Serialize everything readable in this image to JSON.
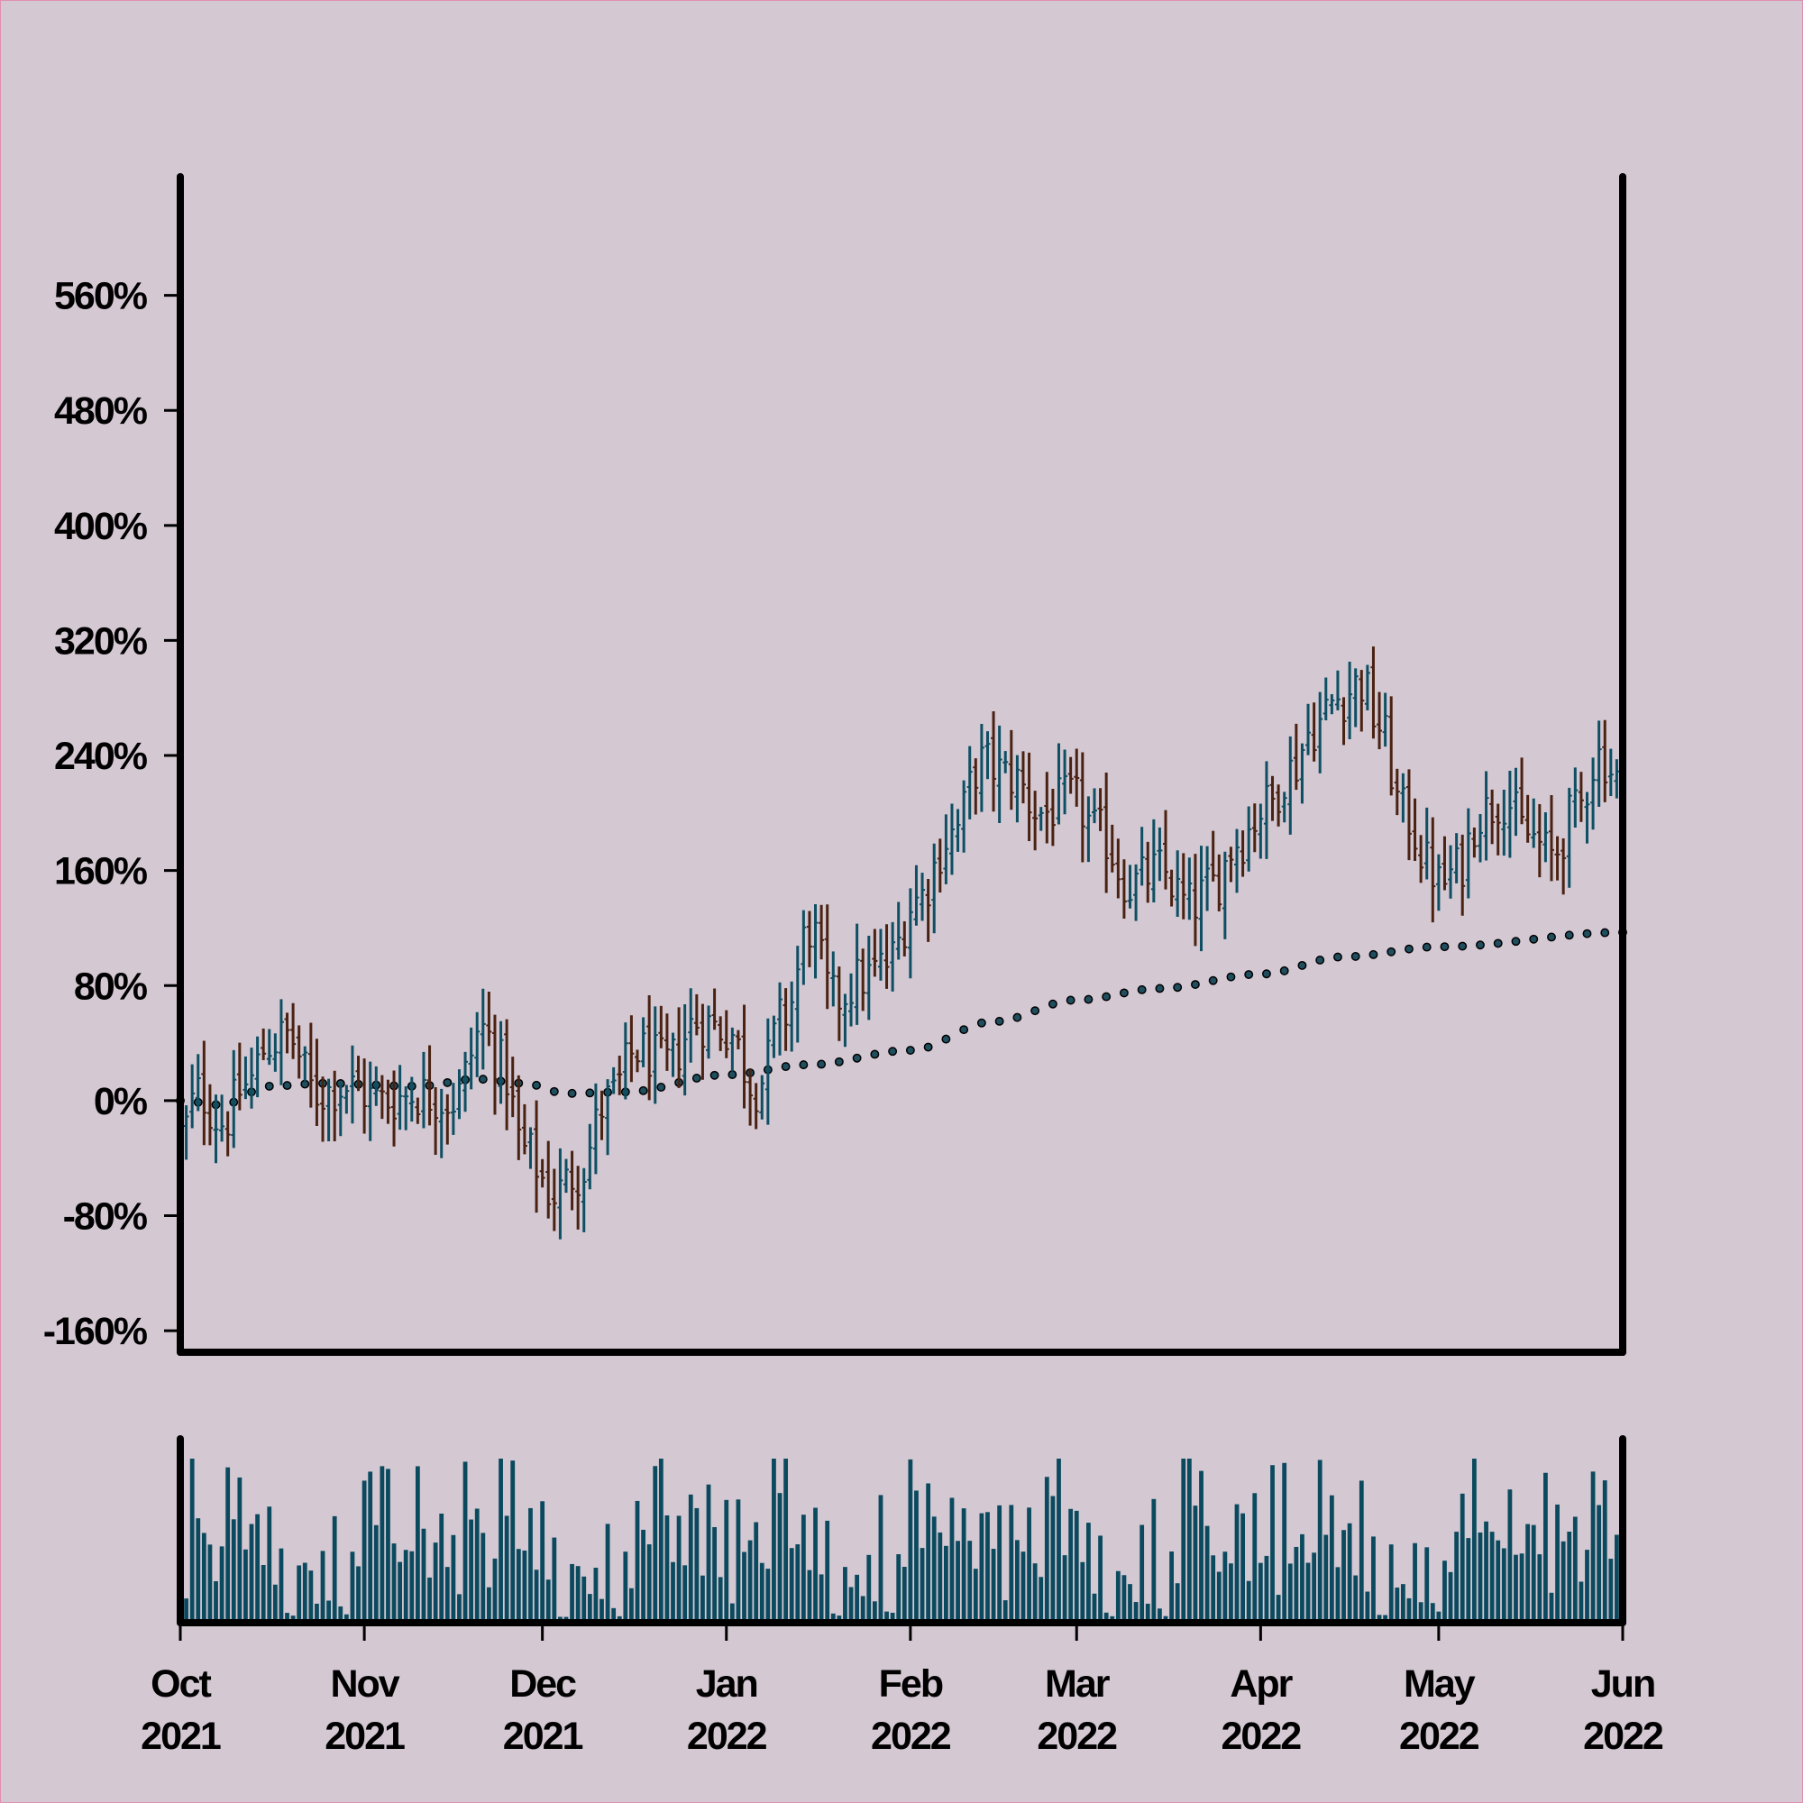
{
  "chart_data": {
    "type": "ohlc",
    "colors": {
      "background": "#d4c8d2",
      "up": "#0e4f63",
      "down": "#4a2212",
      "volume": "#0b4a5e",
      "avg_line": "#1f4e5f",
      "axis": "#000000",
      "frame_border": "#e08fb0"
    },
    "price_panel": {
      "ylim": [
        -175,
        640
      ],
      "yticks": [
        -160,
        -80,
        0,
        80,
        160,
        240,
        320,
        400,
        480,
        560
      ],
      "ytick_labels": [
        "-160%",
        "-80%",
        "0%",
        "80%",
        "160%",
        "240%",
        "320%",
        "400%",
        "480%",
        "560%"
      ]
    },
    "x_axis": {
      "start": "2021-10-01",
      "end": "2022-06-01",
      "ticks": [
        "2021-10-01",
        "2021-11-01",
        "2021-12-01",
        "2022-01-01",
        "2022-02-01",
        "2022-03-01",
        "2022-04-01",
        "2022-05-01",
        "2022-06-01"
      ],
      "tick_labels": [
        [
          "Oct",
          "2021"
        ],
        [
          "Nov",
          "2021"
        ],
        [
          "Dec",
          "2021"
        ],
        [
          "Jan",
          "2022"
        ],
        [
          "Feb",
          "2022"
        ],
        [
          "Mar",
          "2022"
        ],
        [
          "Apr",
          "2022"
        ],
        [
          "May",
          "2022"
        ],
        [
          "Jun",
          "2022"
        ]
      ]
    },
    "close_anchors": [
      [
        "2021-10-01",
        -25
      ],
      [
        "2021-10-04",
        5
      ],
      [
        "2021-10-08",
        -15
      ],
      [
        "2021-10-12",
        10
      ],
      [
        "2021-10-16",
        40
      ],
      [
        "2021-10-19",
        45
      ],
      [
        "2021-10-24",
        5
      ],
      [
        "2021-10-29",
        10
      ],
      [
        "2021-11-04",
        0
      ],
      [
        "2021-11-10",
        5
      ],
      [
        "2021-11-16",
        0
      ],
      [
        "2021-11-21",
        50
      ],
      [
        "2021-11-24",
        25
      ],
      [
        "2021-11-28",
        -35
      ],
      [
        "2021-12-03",
        -65
      ],
      [
        "2021-12-07",
        -50
      ],
      [
        "2021-12-12",
        0
      ],
      [
        "2021-12-17",
        35
      ],
      [
        "2021-12-22",
        25
      ],
      [
        "2021-12-27",
        55
      ],
      [
        "2022-01-01",
        50
      ],
      [
        "2022-01-06",
        10
      ],
      [
        "2022-01-11",
        60
      ],
      [
        "2022-01-15",
        120
      ],
      [
        "2022-01-19",
        70
      ],
      [
        "2022-01-24",
        85
      ],
      [
        "2022-01-28",
        95
      ],
      [
        "2022-02-02",
        140
      ],
      [
        "2022-02-08",
        185
      ],
      [
        "2022-02-13",
        235
      ],
      [
        "2022-02-18",
        225
      ],
      [
        "2022-02-23",
        200
      ],
      [
        "2022-02-28",
        210
      ],
      [
        "2022-03-05",
        185
      ],
      [
        "2022-03-10",
        150
      ],
      [
        "2022-03-15",
        160
      ],
      [
        "2022-03-20",
        135
      ],
      [
        "2022-03-24",
        150
      ],
      [
        "2022-03-28",
        180
      ],
      [
        "2022-04-02",
        205
      ],
      [
        "2022-04-06",
        230
      ],
      [
        "2022-04-10",
        260
      ],
      [
        "2022-04-14",
        280
      ],
      [
        "2022-04-18",
        290
      ],
      [
        "2022-04-21",
        260
      ],
      [
        "2022-04-25",
        200
      ],
      [
        "2022-04-30",
        160
      ],
      [
        "2022-05-01",
        150
      ],
      [
        "2022-05-04",
        160
      ],
      [
        "2022-05-08",
        200
      ],
      [
        "2022-05-12",
        210
      ],
      [
        "2022-05-16",
        185
      ],
      [
        "2022-05-20",
        170
      ],
      [
        "2022-05-24",
        200
      ],
      [
        "2022-05-28",
        240
      ],
      [
        "2022-06-01",
        220
      ]
    ],
    "average_anchors": [
      [
        "2021-10-01",
        0
      ],
      [
        "2021-10-08",
        -3
      ],
      [
        "2021-10-16",
        10
      ],
      [
        "2021-10-25",
        12
      ],
      [
        "2021-11-10",
        10
      ],
      [
        "2021-11-20",
        15
      ],
      [
        "2021-11-28",
        12
      ],
      [
        "2021-12-05",
        5
      ],
      [
        "2021-12-15",
        6
      ],
      [
        "2022-01-01",
        18
      ],
      [
        "2022-01-15",
        25
      ],
      [
        "2022-02-01",
        35
      ],
      [
        "2022-02-15",
        55
      ],
      [
        "2022-03-01",
        70
      ],
      [
        "2022-03-15",
        78
      ],
      [
        "2022-04-01",
        88
      ],
      [
        "2022-04-15",
        100
      ],
      [
        "2022-05-01",
        107
      ],
      [
        "2022-06-01",
        117
      ]
    ],
    "volume_panel": {
      "note": "daily volume bars, unlabeled axis; values relative (0-1)",
      "pattern": [
        0.8,
        0.15,
        0.95,
        0.55,
        0.58,
        0.6,
        0.3,
        0.4,
        0.9,
        0.65,
        0.92,
        0.5,
        0.58,
        0.6,
        0.35,
        0.72,
        0.25,
        0.65,
        0.05,
        0.05,
        0.45,
        0.3,
        0.32,
        0.15,
        0.5,
        0.12,
        0.66,
        0.1,
        0.06,
        0.45,
        0.3,
        0.85,
        0.82,
        0.65,
        0.95,
        0.84,
        0.6,
        0.45,
        0.62,
        0.5,
        0.8,
        0.6,
        0.35,
        0.75,
        0.55,
        0.4
      ]
    }
  }
}
